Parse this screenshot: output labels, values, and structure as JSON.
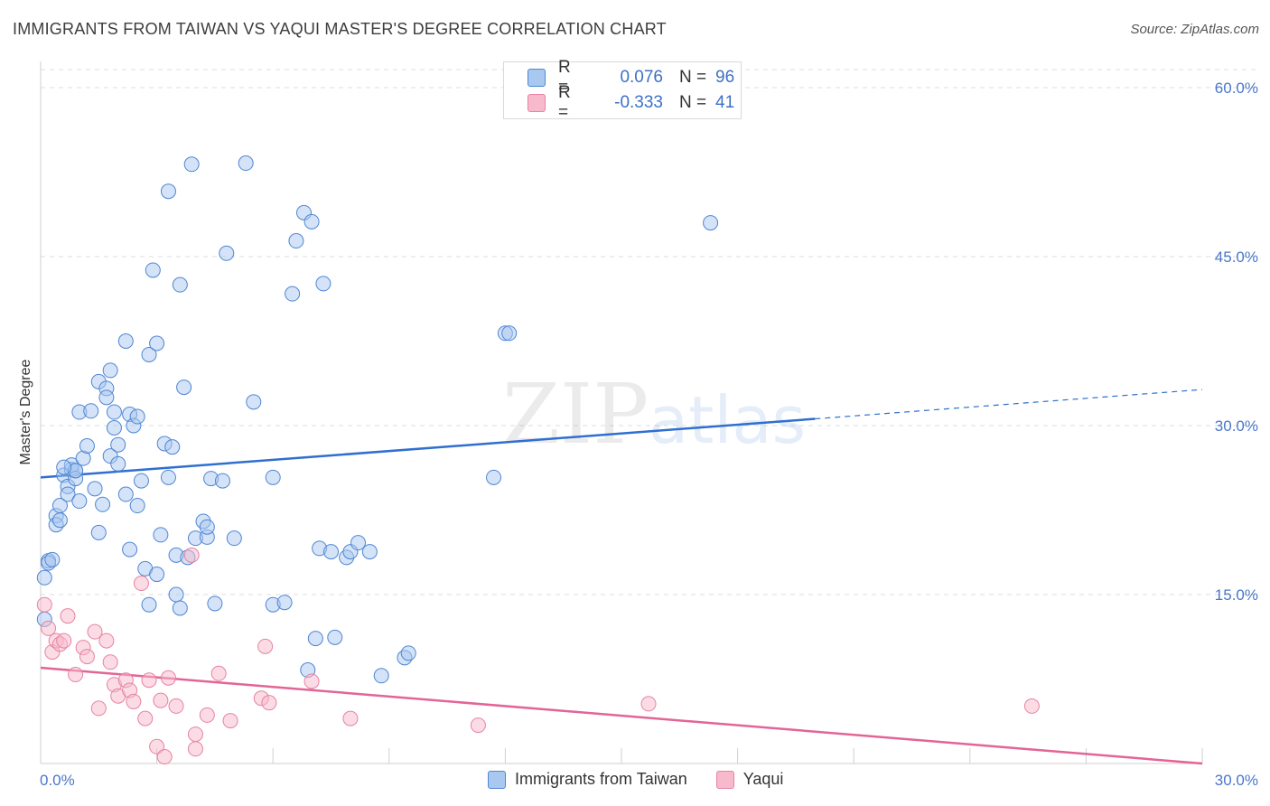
{
  "title": "IMMIGRANTS FROM TAIWAN VS YAQUI MASTER'S DEGREE CORRELATION CHART",
  "source": "Source: ZipAtlas.com",
  "watermark": {
    "zip": "ZIP",
    "atlas": "atlas"
  },
  "legend": {
    "rows": [
      {
        "r_label": "R =",
        "r_value": "0.076",
        "n_label": "N =",
        "n_value": "96"
      },
      {
        "r_label": "R =",
        "r_value": "-0.333",
        "n_label": "N =",
        "n_value": "41"
      }
    ]
  },
  "bottom_legend": [
    "Immigrants from Taiwan",
    "Yaqui"
  ],
  "colors": {
    "blue_fill": "#a9c8f0",
    "blue_stroke": "#4f86d4",
    "blue_line": "#2f6fcf",
    "pink_fill": "#f7b9cc",
    "pink_stroke": "#e782a3",
    "pink_line": "#e26595",
    "grid": "#dcdcdc",
    "axis_text": "#4a77c9"
  },
  "chart_data": {
    "type": "scatter",
    "title": "IMMIGRANTS FROM TAIWAN VS YAQUI MASTER'S DEGREE CORRELATION CHART",
    "xlabel": "",
    "ylabel": "Master's Degree",
    "xlim": [
      0,
      30
    ],
    "ylim": [
      0,
      60
    ],
    "x_tick_labels": [
      "0.0%",
      "30.0%"
    ],
    "y_tick_labels": [
      "15.0%",
      "30.0%",
      "45.0%",
      "60.0%"
    ],
    "y_ticks": [
      15,
      30,
      45,
      60
    ],
    "series": [
      {
        "name": "Immigrants from Taiwan",
        "R": 0.076,
        "N": 96,
        "trend": {
          "x0": 0,
          "y0": 25.4,
          "x1": 20,
          "y1": 30.6,
          "dashed_to_x": 30,
          "dashed_to_y": 33.2
        },
        "points": [
          [
            0.2,
            18.0
          ],
          [
            0.2,
            17.8
          ],
          [
            0.3,
            18.1
          ],
          [
            0.4,
            22.0
          ],
          [
            0.4,
            21.2
          ],
          [
            0.5,
            21.6
          ],
          [
            0.5,
            22.9
          ],
          [
            0.6,
            25.6
          ],
          [
            0.7,
            24.6
          ],
          [
            0.7,
            23.9
          ],
          [
            0.8,
            26.1
          ],
          [
            0.8,
            26.5
          ],
          [
            0.9,
            26.0
          ],
          [
            0.9,
            25.3
          ],
          [
            1.0,
            23.3
          ],
          [
            1.1,
            27.1
          ],
          [
            1.0,
            31.2
          ],
          [
            1.3,
            31.3
          ],
          [
            1.2,
            28.2
          ],
          [
            1.4,
            24.4
          ],
          [
            1.5,
            20.5
          ],
          [
            1.6,
            23.0
          ],
          [
            1.5,
            33.9
          ],
          [
            1.7,
            33.3
          ],
          [
            1.7,
            32.5
          ],
          [
            1.8,
            27.3
          ],
          [
            1.8,
            34.9
          ],
          [
            1.9,
            31.2
          ],
          [
            1.9,
            29.8
          ],
          [
            2.0,
            26.6
          ],
          [
            2.0,
            28.3
          ],
          [
            2.2,
            23.9
          ],
          [
            2.2,
            37.5
          ],
          [
            2.3,
            19.0
          ],
          [
            2.3,
            31.0
          ],
          [
            2.4,
            30.0
          ],
          [
            2.5,
            30.8
          ],
          [
            2.5,
            22.9
          ],
          [
            2.6,
            25.1
          ],
          [
            2.7,
            17.3
          ],
          [
            2.8,
            36.3
          ],
          [
            2.8,
            14.1
          ],
          [
            2.9,
            43.8
          ],
          [
            3.0,
            37.3
          ],
          [
            3.0,
            16.8
          ],
          [
            3.1,
            20.3
          ],
          [
            3.2,
            28.4
          ],
          [
            3.3,
            25.4
          ],
          [
            3.3,
            50.8
          ],
          [
            3.4,
            28.1
          ],
          [
            3.5,
            18.5
          ],
          [
            3.5,
            15.0
          ],
          [
            3.6,
            13.8
          ],
          [
            3.6,
            42.5
          ],
          [
            3.7,
            33.4
          ],
          [
            3.8,
            18.3
          ],
          [
            3.9,
            53.2
          ],
          [
            4.0,
            20.0
          ],
          [
            4.2,
            21.5
          ],
          [
            4.3,
            20.1
          ],
          [
            4.3,
            21.0
          ],
          [
            4.4,
            25.3
          ],
          [
            4.5,
            14.2
          ],
          [
            4.7,
            25.1
          ],
          [
            4.8,
            45.3
          ],
          [
            5.0,
            20.0
          ],
          [
            5.3,
            53.3
          ],
          [
            5.5,
            32.1
          ],
          [
            6.0,
            25.4
          ],
          [
            6.0,
            14.1
          ],
          [
            6.3,
            14.3
          ],
          [
            6.5,
            41.7
          ],
          [
            6.6,
            46.4
          ],
          [
            6.8,
            48.9
          ],
          [
            7.0,
            48.1
          ],
          [
            7.1,
            11.1
          ],
          [
            7.2,
            19.1
          ],
          [
            7.3,
            42.6
          ],
          [
            7.5,
            18.8
          ],
          [
            6.9,
            8.3
          ],
          [
            7.6,
            11.2
          ],
          [
            7.9,
            18.3
          ],
          [
            8.0,
            18.8
          ],
          [
            8.2,
            19.6
          ],
          [
            8.5,
            18.8
          ],
          [
            8.8,
            7.8
          ],
          [
            9.4,
            9.4
          ],
          [
            9.5,
            9.8
          ],
          [
            11.7,
            25.4
          ],
          [
            12.0,
            38.2
          ],
          [
            12.1,
            38.2
          ],
          [
            17.3,
            48.0
          ],
          [
            0.1,
            16.5
          ],
          [
            0.1,
            12.8
          ],
          [
            0.9,
            26.0
          ],
          [
            0.6,
            26.3
          ]
        ]
      },
      {
        "name": "Yaqui",
        "R": -0.333,
        "N": 41,
        "trend": {
          "x0": 0,
          "y0": 8.5,
          "x1": 30,
          "y1": 0.0
        },
        "points": [
          [
            0.1,
            14.1
          ],
          [
            0.2,
            12.0
          ],
          [
            0.3,
            9.9
          ],
          [
            0.4,
            10.9
          ],
          [
            0.5,
            10.6
          ],
          [
            0.6,
            10.9
          ],
          [
            0.7,
            13.1
          ],
          [
            0.9,
            7.9
          ],
          [
            1.1,
            10.3
          ],
          [
            1.2,
            9.5
          ],
          [
            1.4,
            11.7
          ],
          [
            1.5,
            4.9
          ],
          [
            1.7,
            10.9
          ],
          [
            1.8,
            9.0
          ],
          [
            1.9,
            7.0
          ],
          [
            2.0,
            6.0
          ],
          [
            2.2,
            7.4
          ],
          [
            2.3,
            6.5
          ],
          [
            2.4,
            5.5
          ],
          [
            2.6,
            16.0
          ],
          [
            2.7,
            4.0
          ],
          [
            2.8,
            7.4
          ],
          [
            3.0,
            1.5
          ],
          [
            3.1,
            5.6
          ],
          [
            3.2,
            0.6
          ],
          [
            3.3,
            7.6
          ],
          [
            3.5,
            5.1
          ],
          [
            3.9,
            18.5
          ],
          [
            4.0,
            1.3
          ],
          [
            4.0,
            2.6
          ],
          [
            4.3,
            4.3
          ],
          [
            4.6,
            8.0
          ],
          [
            4.9,
            3.8
          ],
          [
            5.7,
            5.8
          ],
          [
            5.9,
            5.4
          ],
          [
            5.8,
            10.4
          ],
          [
            7.0,
            7.3
          ],
          [
            8.0,
            4.0
          ],
          [
            11.3,
            3.4
          ],
          [
            15.7,
            5.3
          ],
          [
            25.6,
            5.1
          ]
        ]
      }
    ]
  }
}
